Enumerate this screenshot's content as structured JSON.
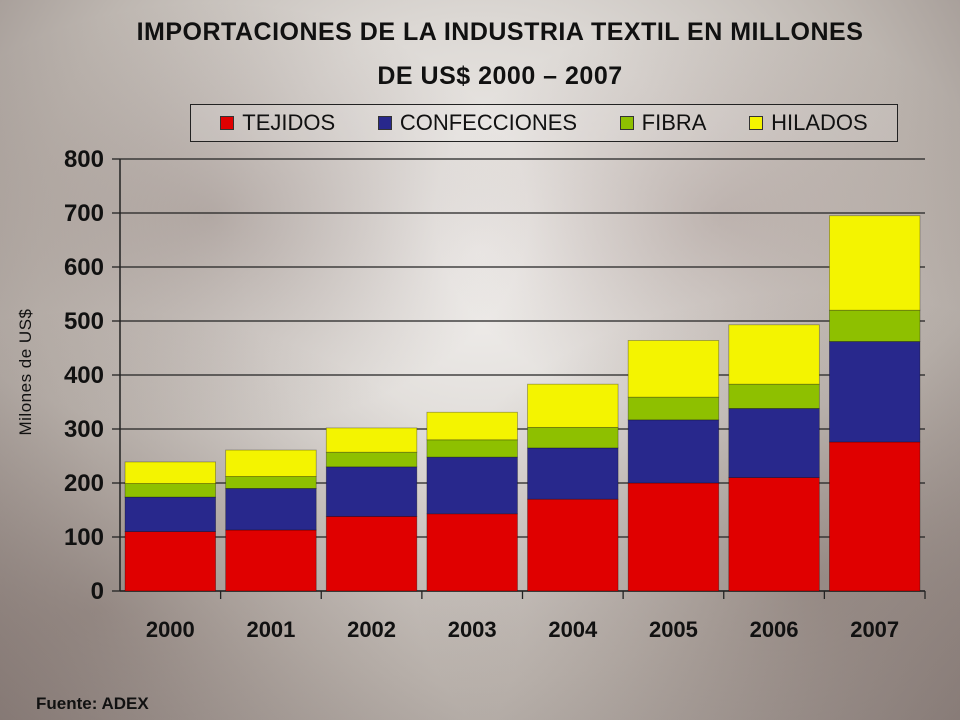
{
  "chart_data": {
    "type": "bar",
    "stacked": true,
    "title_line1": "IMPORTACIONES DE LA INDUSTRIA TEXTIL EN MILLONES",
    "title_line2": "DE  US$ 2000 – 2007",
    "xlabel": "",
    "ylabel": "Milones de US$",
    "ylim": [
      0,
      800
    ],
    "yticks": [
      "0",
      "100",
      "200",
      "300",
      "400",
      "500",
      "600",
      "700",
      "800"
    ],
    "categories": [
      "2000",
      "2001",
      "2002",
      "2003",
      "2004",
      "2005",
      "2006",
      "2007"
    ],
    "series": [
      {
        "name": "TEJIDOS",
        "color": "#e00000",
        "values": [
          110,
          113,
          138,
          143,
          170,
          200,
          210,
          276
        ]
      },
      {
        "name": "CONFECCIONES",
        "color": "#28288c",
        "values": [
          64,
          77,
          92,
          105,
          95,
          117,
          128,
          186
        ]
      },
      {
        "name": "FIBRA",
        "color": "#8ec000",
        "values": [
          25,
          22,
          27,
          32,
          38,
          42,
          45,
          58
        ]
      },
      {
        "name": "HILADOS",
        "color": "#f4f400",
        "values": [
          40,
          49,
          45,
          51,
          80,
          105,
          110,
          175
        ]
      }
    ],
    "legend_position": "top",
    "grid": true
  },
  "source": "Fuente: ADEX"
}
